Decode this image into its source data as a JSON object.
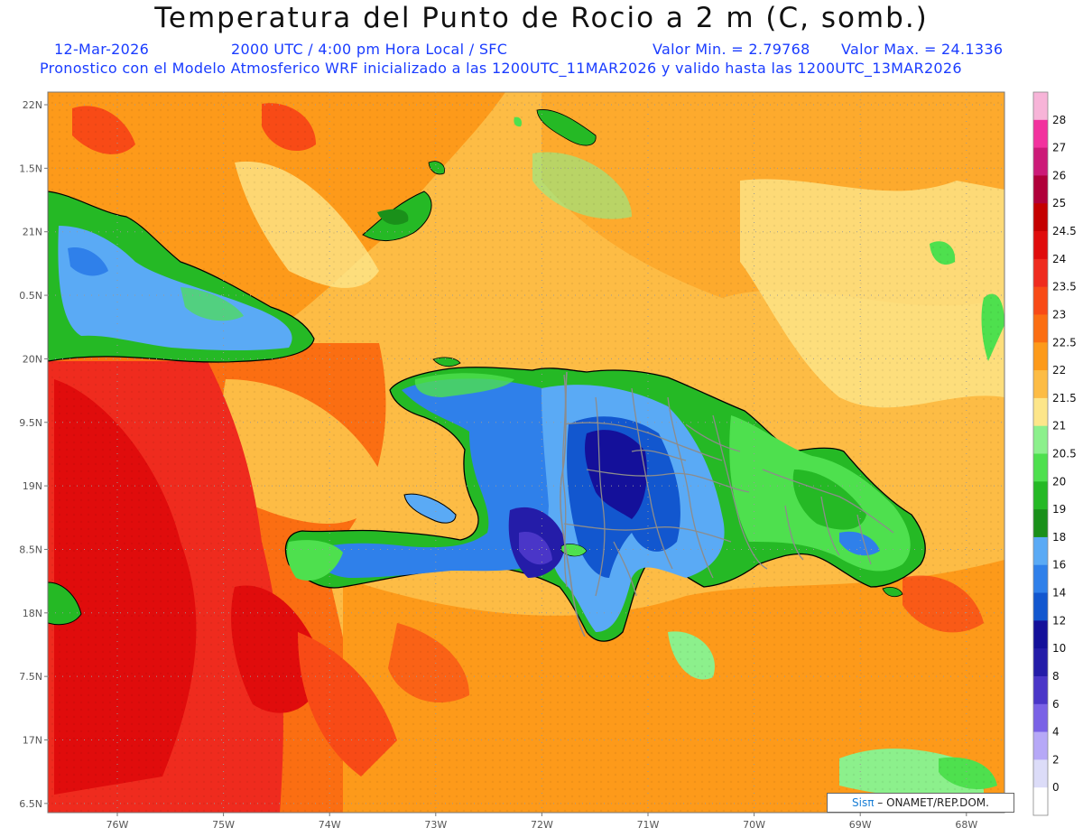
{
  "header": {
    "title": "Temperatura del Punto de Rocio a 2 m (C, somb.)",
    "date": "12-Mar-2026",
    "time": "2000 UTC / 4:00 pm Hora Local / SFC",
    "min_value": "Valor Min. = 2.79768",
    "max_value": "Valor Max. = 24.1336",
    "model_info": "Pronostico con el Modelo Atmosferico WRF inicializado a las 1200UTC_11MAR2026 y valido hasta las  1200UTC_13MAR2026"
  },
  "map": {
    "lat_ticks": [
      "22N",
      "1.5N",
      "21N",
      "0.5N",
      "20N",
      "9.5N",
      "19N",
      "8.5N",
      "18N",
      "7.5N",
      "17N",
      "6.5N"
    ],
    "lon_ticks": [
      "76W",
      "75W",
      "74W",
      "73W",
      "72W",
      "71W",
      "70W",
      "69W",
      "68W"
    ]
  },
  "colorbar": {
    "levels": [
      {
        "label": "28",
        "color": "#f7b4d8"
      },
      {
        "label": "27",
        "color": "#f2329e"
      },
      {
        "label": "26",
        "color": "#cc1a78"
      },
      {
        "label": "25",
        "color": "#b0003a"
      },
      {
        "label": "24.5",
        "color": "#c40000"
      },
      {
        "label": "24",
        "color": "#e00c0c"
      },
      {
        "label": "23.5",
        "color": "#ef2b1e"
      },
      {
        "label": "23",
        "color": "#f84a16"
      },
      {
        "label": "22.5",
        "color": "#fb6e12"
      },
      {
        "label": "22",
        "color": "#fd9a1a"
      },
      {
        "label": "21.5",
        "color": "#fdbc45"
      },
      {
        "label": "21",
        "color": "#fde68a"
      },
      {
        "label": "20.5",
        "color": "#8cf08c"
      },
      {
        "label": "20",
        "color": "#4ee04e"
      },
      {
        "label": "19",
        "color": "#25b925"
      },
      {
        "label": "18",
        "color": "#1a901a"
      },
      {
        "label": "16",
        "color": "#5aaaf5"
      },
      {
        "label": "14",
        "color": "#2f80ea"
      },
      {
        "label": "12",
        "color": "#1257cf"
      },
      {
        "label": "10",
        "color": "#14109a"
      },
      {
        "label": "8",
        "color": "#241ca8"
      },
      {
        "label": "6",
        "color": "#4a36c8"
      },
      {
        "label": "4",
        "color": "#7a62e6"
      },
      {
        "label": "2",
        "color": "#b6a8f7"
      },
      {
        "label": "0",
        "color": "#dcdcf8"
      },
      {
        "label": "",
        "color": "#ffffff"
      }
    ]
  },
  "credit": {
    "sis": "Sis",
    "pi": "π",
    "org": " – ONAMET/REP.DOM."
  }
}
